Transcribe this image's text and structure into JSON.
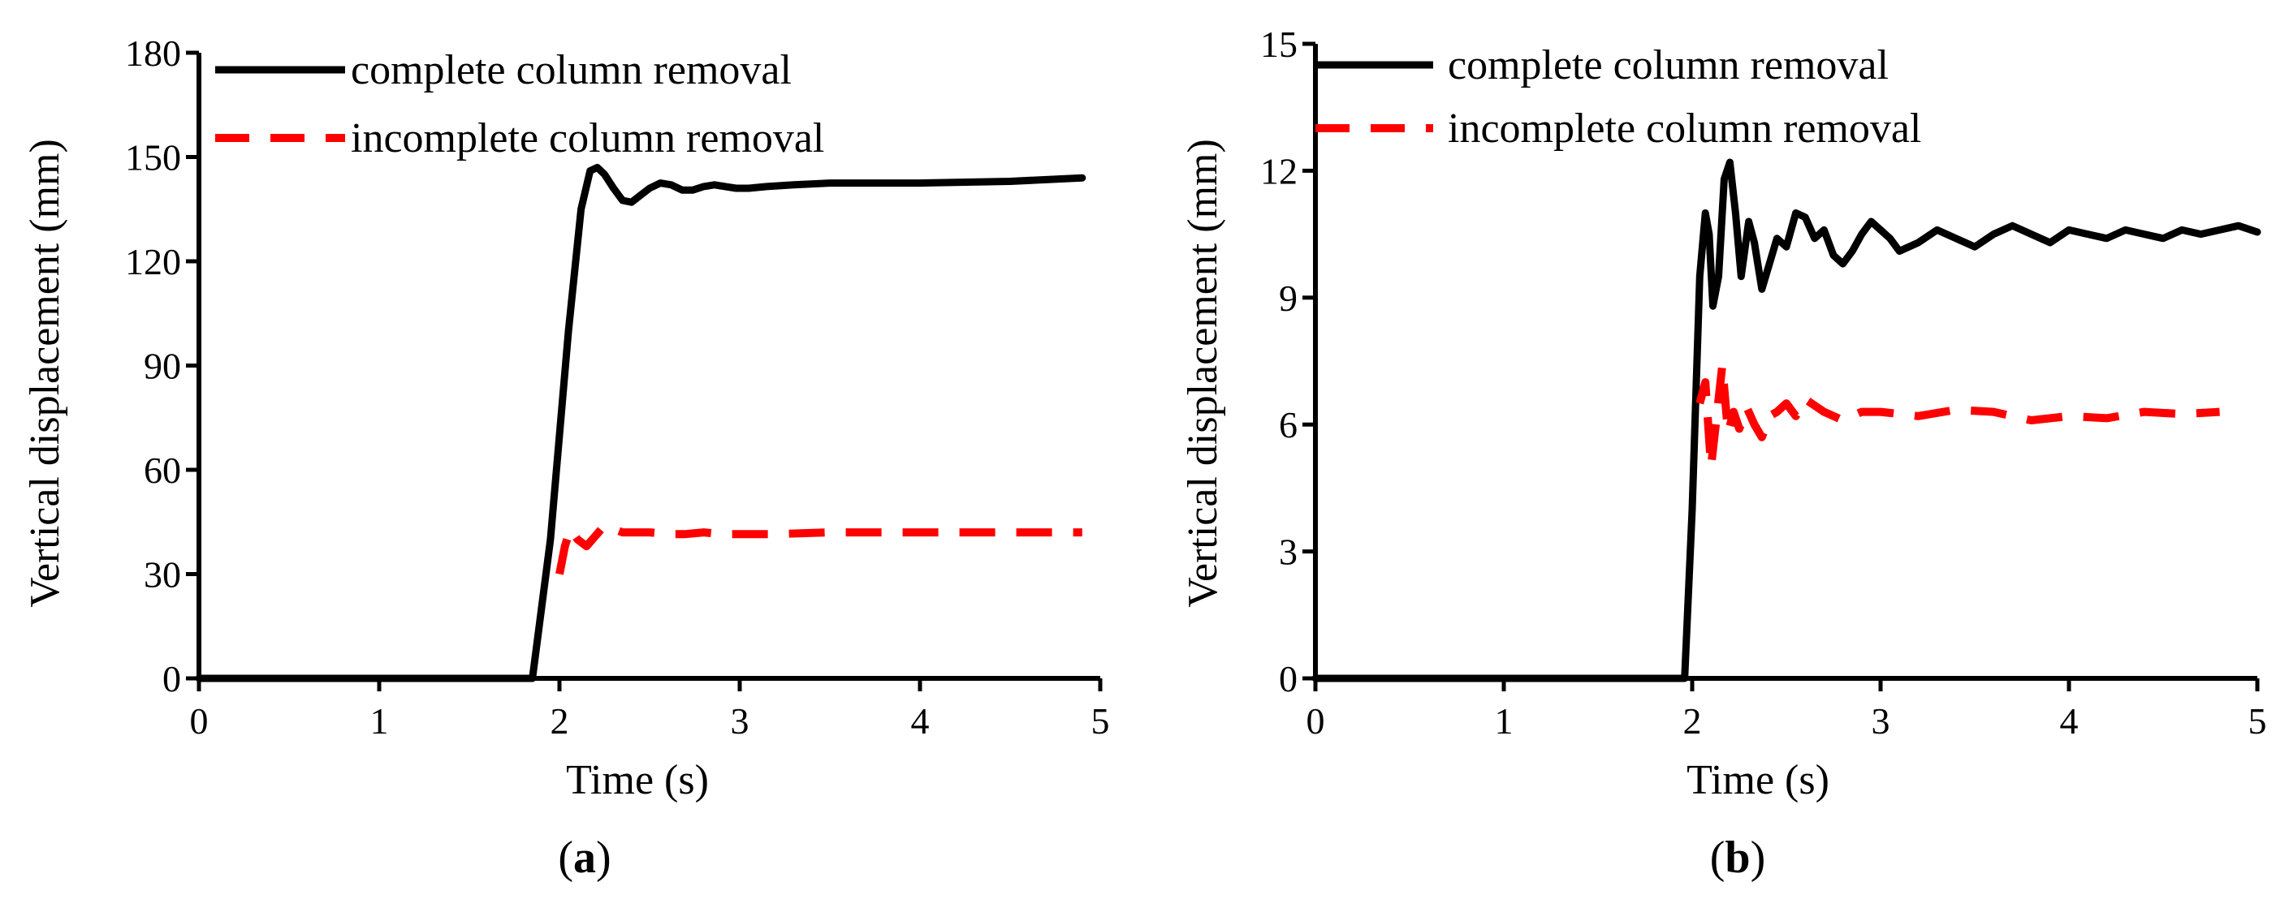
{
  "chart_data": [
    {
      "type": "line",
      "panel_label": "a",
      "xlabel": "Time (s)",
      "ylabel": "Vertical displacement (mm)",
      "xlim": [
        0,
        5
      ],
      "ylim": [
        0,
        180
      ],
      "xticks": [
        "0",
        "1",
        "2",
        "3",
        "4",
        "5"
      ],
      "yticks": [
        "0",
        "30",
        "60",
        "90",
        "120",
        "150",
        "180"
      ],
      "grid": false,
      "legend_position": "top-left",
      "series": [
        {
          "name": "complete column removal",
          "color": "#000000",
          "style": "solid",
          "x": [
            0,
            1.85,
            1.95,
            2.05,
            2.12,
            2.17,
            2.21,
            2.25,
            2.3,
            2.35,
            2.4,
            2.45,
            2.5,
            2.56,
            2.62,
            2.68,
            2.74,
            2.8,
            2.86,
            2.92,
            2.98,
            3.05,
            3.15,
            3.3,
            3.5,
            4.0,
            4.5,
            4.9
          ],
          "y": [
            0,
            0,
            40,
            100,
            135,
            146,
            147,
            145,
            141,
            137.5,
            137,
            139,
            141,
            142.5,
            142,
            140.5,
            140.5,
            141.5,
            142,
            141.5,
            141,
            141,
            141.5,
            142,
            142.5,
            142.5,
            143,
            144
          ]
        },
        {
          "name": "incomplete column removal",
          "color": "#ff0000",
          "style": "dashed",
          "x": [
            2.0,
            2.03,
            2.06,
            2.1,
            2.15,
            2.2,
            2.25,
            2.3,
            2.35,
            2.4,
            2.5,
            2.6,
            2.7,
            2.8,
            2.9,
            3.0,
            3.2,
            3.5,
            4.0,
            4.5,
            4.9
          ],
          "y": [
            30,
            38,
            43,
            40,
            38,
            41,
            44,
            43,
            42,
            42,
            42,
            41.5,
            41.5,
            42,
            41.5,
            41.5,
            41.5,
            42,
            42,
            42,
            42
          ]
        }
      ]
    },
    {
      "type": "line",
      "panel_label": "b",
      "xlabel": "Time (s)",
      "ylabel": "Vertical displacement (mm)",
      "xlim": [
        0,
        5
      ],
      "ylim": [
        0,
        15
      ],
      "xticks": [
        "0",
        "1",
        "2",
        "3",
        "4",
        "5"
      ],
      "yticks": [
        "0",
        "3",
        "6",
        "9",
        "12",
        "15"
      ],
      "grid": false,
      "legend_position": "top-left",
      "series": [
        {
          "name": "complete column removal",
          "color": "#000000",
          "style": "solid",
          "x": [
            0,
            1.96,
            2.0,
            2.04,
            2.07,
            2.09,
            2.11,
            2.14,
            2.17,
            2.2,
            2.23,
            2.26,
            2.3,
            2.33,
            2.37,
            2.41,
            2.45,
            2.5,
            2.55,
            2.6,
            2.65,
            2.7,
            2.75,
            2.8,
            2.85,
            2.9,
            2.95,
            3.0,
            3.05,
            3.1,
            3.2,
            3.3,
            3.4,
            3.5,
            3.6,
            3.7,
            3.8,
            3.9,
            4.0,
            4.1,
            4.2,
            4.3,
            4.4,
            4.5,
            4.6,
            4.7,
            4.8,
            4.9,
            5.0
          ],
          "y": [
            0,
            0,
            4,
            9.5,
            11,
            10.5,
            8.8,
            9.5,
            11.8,
            12.2,
            11,
            9.5,
            10.8,
            10.3,
            9.2,
            9.8,
            10.4,
            10.2,
            11.0,
            10.9,
            10.4,
            10.6,
            10.0,
            9.8,
            10.1,
            10.5,
            10.8,
            10.6,
            10.4,
            10.1,
            10.3,
            10.6,
            10.4,
            10.2,
            10.5,
            10.7,
            10.5,
            10.3,
            10.6,
            10.5,
            10.4,
            10.6,
            10.5,
            10.4,
            10.6,
            10.5,
            10.6,
            10.7,
            10.55
          ]
        },
        {
          "name": "incomplete column removal",
          "color": "#ff0000",
          "style": "dashed",
          "x": [
            2.04,
            2.07,
            2.1,
            2.13,
            2.16,
            2.19,
            2.22,
            2.25,
            2.29,
            2.33,
            2.37,
            2.41,
            2.45,
            2.5,
            2.55,
            2.6,
            2.7,
            2.8,
            2.9,
            3.0,
            3.2,
            3.4,
            3.6,
            3.8,
            4.0,
            4.2,
            4.4,
            4.6,
            4.8
          ],
          "y": [
            6.5,
            7.0,
            5.0,
            6.2,
            7.4,
            5.8,
            6.3,
            5.9,
            6.4,
            6.0,
            5.7,
            6.2,
            6.3,
            6.5,
            6.2,
            6.6,
            6.3,
            6.1,
            6.3,
            6.3,
            6.2,
            6.35,
            6.3,
            6.1,
            6.2,
            6.15,
            6.3,
            6.25,
            6.3
          ]
        }
      ]
    }
  ],
  "captions": {
    "a": "a",
    "b": "b"
  },
  "colors": {
    "complete": "#000000",
    "incomplete": "#ff0000"
  }
}
